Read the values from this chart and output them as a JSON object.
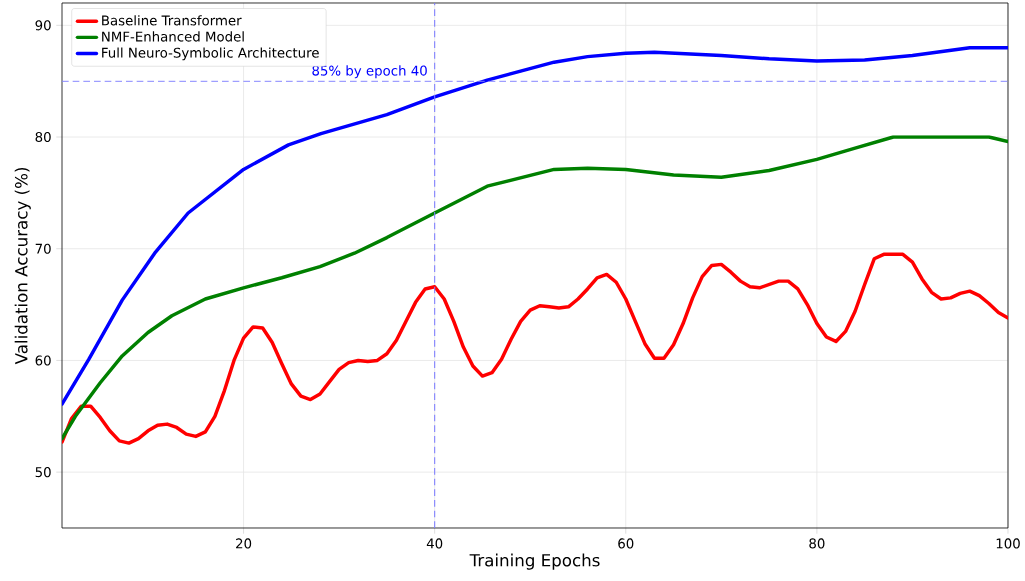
{
  "chart_data": {
    "type": "line",
    "xlabel": "Training Epochs",
    "ylabel": "Validation Accuracy (%)",
    "xlim": [
      1,
      100
    ],
    "ylim": [
      45,
      92
    ],
    "xticks": [
      20,
      40,
      60,
      80,
      100
    ],
    "yticks": [
      50,
      60,
      70,
      80,
      90
    ],
    "grid": true,
    "legend": "top left",
    "line_style": "solid",
    "marker": "none",
    "series": [
      {
        "name": "Baseline Transformer",
        "color": "#ff0000",
        "x": [
          1,
          2,
          3,
          4,
          5,
          6,
          7,
          8,
          9,
          10,
          11,
          12,
          13,
          14,
          15,
          16,
          17,
          18,
          19,
          20,
          21,
          22,
          23,
          24,
          25,
          26,
          27,
          28,
          29,
          30,
          31,
          32,
          33,
          34,
          35,
          36,
          37,
          38,
          39,
          40,
          41,
          42,
          43,
          44,
          45,
          46,
          47,
          48,
          49,
          50,
          51,
          52,
          53,
          54,
          55,
          56,
          57,
          58,
          59,
          60,
          61,
          62,
          63,
          64,
          65,
          66,
          67,
          68,
          69,
          70,
          71,
          72,
          73,
          74,
          75,
          76,
          77,
          78,
          79,
          80,
          81,
          82,
          83,
          84,
          85,
          86,
          87,
          88,
          89,
          90,
          91,
          92,
          93,
          94,
          95,
          96,
          97,
          98,
          99,
          100
        ],
        "values": [
          52.7,
          54.8,
          55.9,
          55.9,
          54.9,
          53.7,
          52.8,
          52.6,
          53.0,
          53.7,
          54.2,
          54.3,
          54.0,
          53.4,
          53.2,
          53.6,
          55.0,
          57.3,
          60.0,
          62.0,
          63.0,
          62.9,
          61.6,
          59.7,
          57.9,
          56.8,
          56.5,
          57.0,
          58.1,
          59.2,
          59.8,
          60.0,
          59.9,
          60.0,
          60.6,
          61.8,
          63.5,
          65.2,
          66.4,
          66.6,
          65.5,
          63.5,
          61.2,
          59.5,
          58.6,
          58.9,
          60.1,
          61.9,
          63.5,
          64.5,
          64.9,
          64.8,
          64.7,
          64.8,
          65.5,
          66.4,
          67.4,
          67.7,
          67.0,
          65.5,
          63.5,
          61.5,
          60.2,
          60.2,
          61.4,
          63.3,
          65.6,
          67.5,
          68.5,
          68.6,
          67.9,
          67.1,
          66.6,
          66.5,
          66.8,
          67.1,
          67.1,
          66.4,
          65.0,
          63.3,
          62.1,
          61.7,
          62.6,
          64.4,
          66.8,
          69.1,
          69.5,
          69.5,
          69.5,
          68.8,
          67.3,
          66.1,
          65.5,
          65.6,
          66.0,
          66.2,
          65.8,
          65.1,
          64.3,
          63.8
        ]
      },
      {
        "name": "NMF-Enhanced Model",
        "color": "#008000",
        "x": [
          1,
          2.4,
          5,
          7.3,
          10,
          12.5,
          16,
          20,
          24,
          28,
          31.6,
          35,
          40,
          45.5,
          52.5,
          56,
          60,
          65,
          70,
          75,
          80,
          84,
          88,
          92,
          96,
          98,
          100
        ],
        "values": [
          53.0,
          55.0,
          58.0,
          60.4,
          62.5,
          64.0,
          65.5,
          66.5,
          67.4,
          68.4,
          69.6,
          71.0,
          73.2,
          75.6,
          77.1,
          77.2,
          77.1,
          76.6,
          76.4,
          77.0,
          78.0,
          79.0,
          80.0,
          80.0,
          80.0,
          80.0,
          79.6
        ]
      },
      {
        "name": "Full Neuro-Symbolic Architecture",
        "color": "#0000ff",
        "x": [
          1,
          3.8,
          7.3,
          10.7,
          14.2,
          20,
          24.7,
          28.1,
          35,
          40,
          45.5,
          52.5,
          56,
          60,
          63,
          70,
          75,
          80,
          85,
          90,
          96,
          100
        ],
        "values": [
          56.1,
          60.1,
          65.4,
          69.6,
          73.2,
          77.1,
          79.3,
          80.3,
          82.0,
          83.6,
          85.1,
          86.7,
          87.2,
          87.5,
          87.6,
          87.3,
          87.0,
          86.8,
          86.9,
          87.3,
          88.0,
          88.0
        ]
      }
    ],
    "ref_lines": [
      {
        "axis": "y",
        "value": 85,
        "label": "85% by epoch 40",
        "color": "#7f7fff",
        "line_style": "dashed"
      },
      {
        "axis": "x",
        "value": 40,
        "color": "#7f7fff",
        "line_style": "dashed"
      }
    ]
  }
}
